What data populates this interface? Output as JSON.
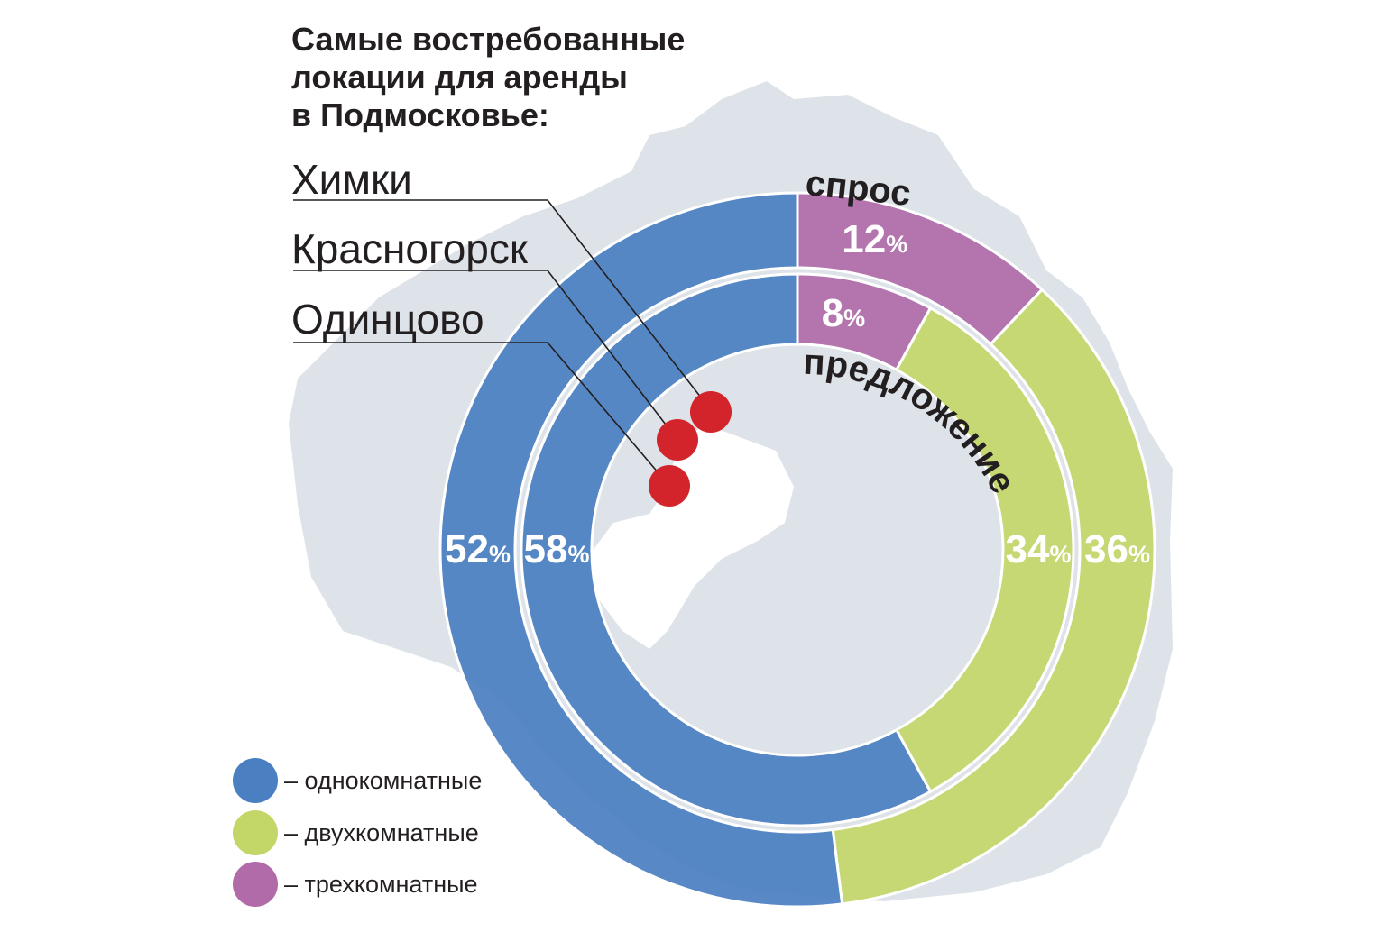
{
  "title": [
    "Самые востребованные",
    "локации для аренды",
    "в Подмосковье:"
  ],
  "locations": [
    "Химки",
    "Красногорск",
    "Одинцово"
  ],
  "ring_labels": {
    "outer": "спрос",
    "inner": "предложение"
  },
  "percent_sign": "%",
  "legend": [
    {
      "label": "– однокомнатные",
      "color": "#4a7fc1"
    },
    {
      "label": "– двухкомнатные",
      "color": "#c2d768"
    },
    {
      "label": "– трехкомнатные",
      "color": "#b06ba8"
    }
  ],
  "colors": {
    "map": "#dde3e8",
    "marker": "#d3232b",
    "leader_line": "#231f20"
  },
  "chart_data": {
    "type": "donut",
    "categories": [
      "однокомнатные",
      "двухкомнатные",
      "трехкомнатные"
    ],
    "series": [
      {
        "name": "спрос",
        "values": [
          52,
          36,
          12
        ]
      },
      {
        "name": "предложение",
        "values": [
          58,
          34,
          8
        ]
      }
    ],
    "unit": "%"
  }
}
